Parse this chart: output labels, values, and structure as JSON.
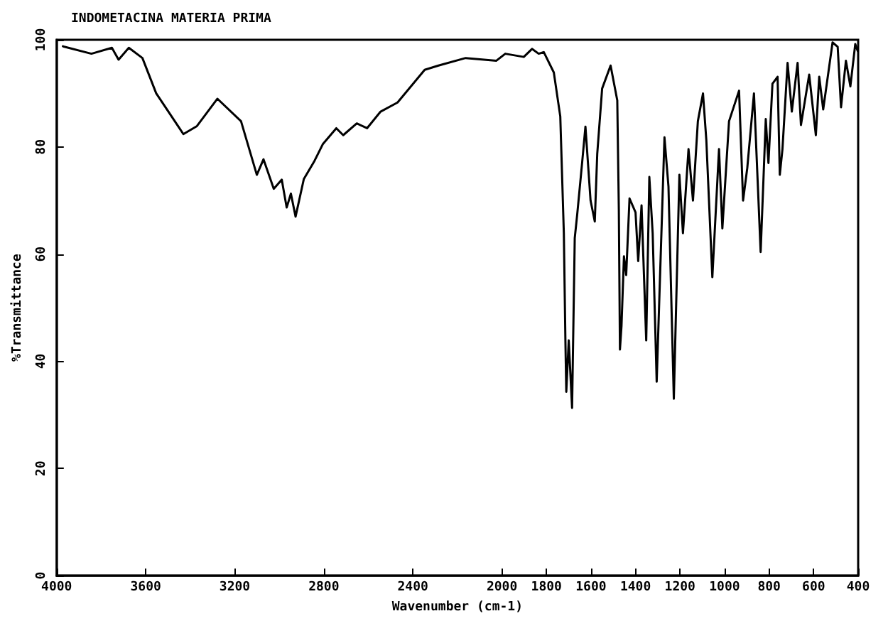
{
  "chart_data": {
    "type": "line",
    "title": "INDOMETACINA MATERIA PRIMA",
    "xlabel": "Wavenumber (cm-1)",
    "ylabel": "%Transmittance",
    "xlim": [
      4000,
      400
    ],
    "xticks": [
      4000,
      3600,
      3200,
      2800,
      2400,
      2000,
      1800,
      1600,
      1400,
      1200,
      1000,
      800,
      600,
      400
    ],
    "ylim": [
      0,
      100
    ],
    "yticks": [
      0,
      20,
      40,
      60,
      80,
      100
    ],
    "grid": false,
    "marker": "none",
    "line_style": "solid",
    "series": [
      {
        "color": "#000000",
        "x": [
          3972,
          3966,
          3844,
          3752,
          3722,
          3676,
          3615,
          3553,
          3431,
          3370,
          3278,
          3172,
          3101,
          3071,
          3025,
          2989,
          2967,
          2948,
          2927,
          2890,
          2842,
          2805,
          2744,
          2713,
          2652,
          2606,
          2545,
          2469,
          2347,
          2285,
          2163,
          2025,
          1985,
          1902,
          1865,
          1835,
          1812,
          1767,
          1738,
          1722,
          1715,
          1711,
          1700,
          1685,
          1673,
          1662,
          1640,
          1625,
          1602,
          1583,
          1572,
          1550,
          1512,
          1482,
          1475,
          1470,
          1463,
          1452,
          1442,
          1427,
          1400,
          1388,
          1373,
          1352,
          1338,
          1323,
          1305,
          1270,
          1252,
          1228,
          1203,
          1187,
          1162,
          1142,
          1120,
          1097,
          1082,
          1055,
          1025,
          1010,
          980,
          935,
          917,
          898,
          868,
          838,
          815,
          803,
          785,
          762,
          752,
          740,
          717,
          698,
          672,
          657,
          620,
          590,
          575,
          557,
          515,
          492,
          477,
          455,
          435,
          413,
          402
        ],
        "values": [
          98.8,
          98.7,
          97.4,
          98.5,
          96.3,
          98.5,
          96.6,
          90.0,
          82.4,
          83.9,
          89.0,
          84.8,
          74.8,
          77.7,
          72.2,
          73.9,
          68.7,
          71.3,
          67.0,
          74.0,
          77.4,
          80.5,
          83.5,
          82.2,
          84.4,
          83.5,
          86.6,
          88.3,
          94.4,
          95.2,
          96.6,
          96.1,
          97.4,
          96.8,
          98.3,
          97.4,
          97.7,
          93.9,
          85.7,
          63.9,
          43.9,
          34.3,
          43.9,
          31.3,
          63.0,
          67.4,
          77.0,
          83.8,
          70.0,
          66.1,
          78.7,
          90.9,
          95.2,
          88.7,
          68.3,
          42.2,
          46.6,
          59.6,
          56.1,
          70.4,
          67.8,
          58.7,
          69.1,
          43.9,
          74.4,
          63.9,
          36.2,
          81.8,
          72.6,
          33.0,
          74.8,
          63.9,
          79.6,
          70.0,
          84.8,
          90.0,
          81.3,
          55.7,
          79.6,
          64.8,
          84.8,
          90.5,
          70.0,
          76.1,
          90.0,
          60.4,
          85.2,
          77.0,
          91.8,
          93.1,
          74.8,
          79.6,
          95.7,
          86.6,
          95.7,
          84.1,
          93.5,
          82.2,
          93.1,
          87.0,
          99.5,
          98.7,
          87.4,
          96.1,
          91.3,
          99.2,
          97.9
        ]
      }
    ]
  }
}
